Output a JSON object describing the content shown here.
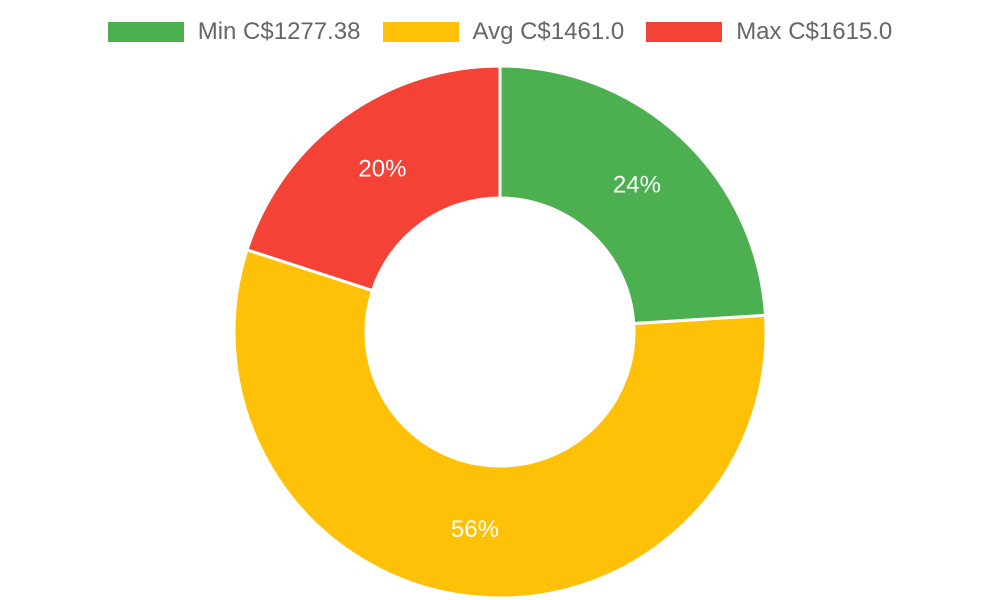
{
  "chart_data": {
    "type": "pie",
    "variant": "doughnut",
    "legend_position": "top",
    "slices": [
      {
        "label": "Min C$1277.38",
        "value": 24,
        "display": "24%",
        "color": "#4caf50"
      },
      {
        "label": "Avg C$1461.0",
        "value": 56,
        "display": "56%",
        "color": "#ffc107"
      },
      {
        "label": "Max C$1615.0",
        "value": 20,
        "display": "20%",
        "color": "#f44336"
      }
    ]
  }
}
